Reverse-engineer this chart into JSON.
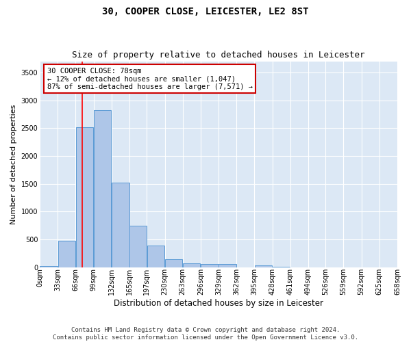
{
  "title": "30, COOPER CLOSE, LEICESTER, LE2 8ST",
  "subtitle": "Size of property relative to detached houses in Leicester",
  "xlabel": "Distribution of detached houses by size in Leicester",
  "ylabel": "Number of detached properties",
  "bar_color": "#aec6e8",
  "bar_edgecolor": "#5b9bd5",
  "background_color": "#dce8f5",
  "grid_color": "#ffffff",
  "red_line_x": 78,
  "annotation_line1": "30 COOPER CLOSE: 78sqm",
  "annotation_line2": "← 12% of detached houses are smaller (1,047)",
  "annotation_line3": "87% of semi-detached houses are larger (7,571) →",
  "annotation_box_color": "#ffffff",
  "annotation_edgecolor": "#cc0000",
  "bins": [
    0,
    33,
    66,
    99,
    132,
    165,
    197,
    230,
    263,
    296,
    329,
    362,
    395,
    428,
    461,
    494,
    526,
    559,
    592,
    625,
    658
  ],
  "bar_heights": [
    20,
    480,
    2510,
    2820,
    1520,
    750,
    390,
    140,
    75,
    55,
    55,
    0,
    35,
    10,
    0,
    0,
    0,
    0,
    0,
    0
  ],
  "ylim": [
    0,
    3700
  ],
  "yticks": [
    0,
    500,
    1000,
    1500,
    2000,
    2500,
    3000,
    3500
  ],
  "footer_text": "Contains HM Land Registry data © Crown copyright and database right 2024.\nContains public sector information licensed under the Open Government Licence v3.0.",
  "title_fontsize": 10,
  "subtitle_fontsize": 9,
  "tick_fontsize": 7,
  "ylabel_fontsize": 8,
  "xlabel_fontsize": 8.5,
  "annotation_fontsize": 7.5,
  "footer_fontsize": 6.5,
  "fig_facecolor": "#ffffff"
}
